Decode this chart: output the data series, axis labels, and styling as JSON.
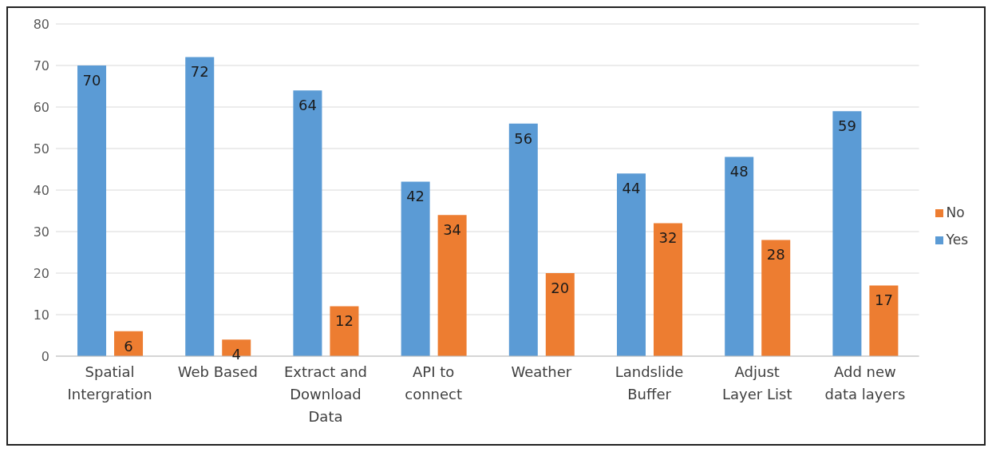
{
  "chart_data": {
    "type": "bar",
    "categories": [
      "Spatial Intergration",
      "Web Based",
      "Extract and Download Data",
      "API to connect",
      "Weather",
      "Landslide Buffer",
      "Adjust Layer List",
      "Add new data layers"
    ],
    "series": [
      {
        "name": "Yes",
        "color": "#5b9bd5",
        "values": [
          70,
          72,
          64,
          42,
          56,
          44,
          48,
          59
        ]
      },
      {
        "name": "No",
        "color": "#ed7d31",
        "values": [
          6,
          4,
          12,
          34,
          20,
          32,
          28,
          17
        ]
      }
    ],
    "ylim": [
      0,
      80
    ],
    "yticks": [
      0,
      10,
      20,
      30,
      40,
      50,
      60,
      70,
      80
    ],
    "grid": "y",
    "legend": "right",
    "data_labels": true
  }
}
